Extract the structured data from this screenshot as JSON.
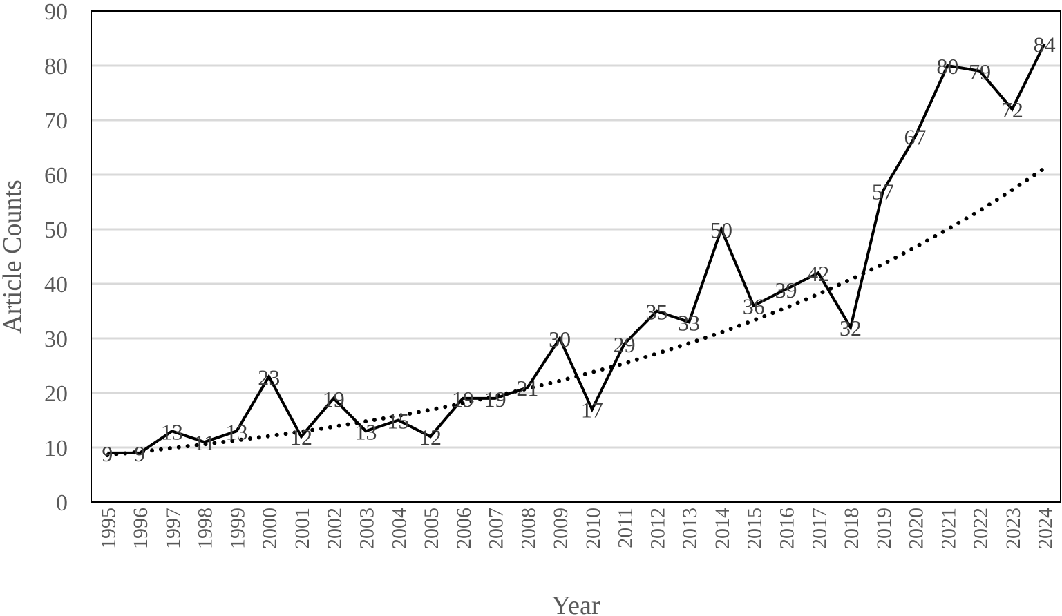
{
  "chart_data": {
    "type": "line",
    "title": "",
    "xlabel": "Year",
    "ylabel": "Article Counts",
    "ylim": [
      0,
      90
    ],
    "yticks": [
      0,
      10,
      20,
      30,
      40,
      50,
      60,
      70,
      80,
      90
    ],
    "grid": true,
    "legend": "none",
    "categories": [
      "1995",
      "1996",
      "1997",
      "1998",
      "1999",
      "2000",
      "2001",
      "2002",
      "2003",
      "2004",
      "2005",
      "2006",
      "2007",
      "2008",
      "2009",
      "2010",
      "2011",
      "2012",
      "2013",
      "2014",
      "2015",
      "2016",
      "2017",
      "2018",
      "2019",
      "2020",
      "2021",
      "2022",
      "2023",
      "2024"
    ],
    "series": [
      {
        "style": "solid",
        "color": "#000000",
        "data_labels": true,
        "values": [
          9,
          9,
          13,
          11,
          13,
          23,
          12,
          19,
          13,
          15,
          12,
          19,
          19,
          21,
          30,
          17,
          29,
          35,
          33,
          50,
          36,
          39,
          42,
          32,
          57,
          67,
          80,
          79,
          72,
          84
        ]
      },
      {
        "style": "dotted",
        "color": "#000000",
        "trendline": "exponential",
        "data_labels": false,
        "values": [
          8.6,
          9.2,
          9.9,
          10.6,
          11.3,
          12.1,
          12.9,
          13.8,
          14.8,
          15.8,
          16.9,
          18.1,
          19.4,
          20.8,
          22.2,
          23.8,
          25.4,
          27.2,
          29.1,
          31.1,
          33.3,
          35.6,
          38.1,
          40.8,
          43.6,
          46.7,
          50.0,
          53.4,
          57.2,
          61.2
        ]
      }
    ],
    "colors": {
      "line": "#000000",
      "grid": "#d9d9d9",
      "axis_text": "#595959",
      "label_text": "#404040"
    }
  }
}
